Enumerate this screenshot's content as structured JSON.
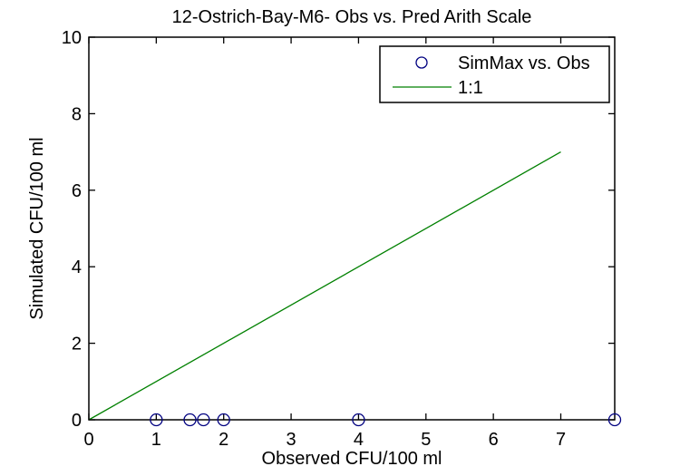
{
  "chart_data": {
    "type": "scatter",
    "title": "12-Ostrich-Bay-M6- Obs vs. Pred Arith Scale",
    "xlabel": "Observed CFU/100 ml",
    "ylabel": "Simulated CFU/100 ml",
    "xlim": [
      0,
      7.8
    ],
    "ylim": [
      0,
      10
    ],
    "x_ticks": [
      0,
      1,
      2,
      3,
      4,
      5,
      6,
      7
    ],
    "y_ticks": [
      0,
      2,
      4,
      6,
      8,
      10
    ],
    "grid": false,
    "legend_position": "top-right",
    "series": [
      {
        "name": "SimMax vs. Obs",
        "type": "scatter",
        "marker": "circle",
        "color": "#000080",
        "x": [
          1.0,
          1.5,
          1.7,
          2.0,
          4.0,
          7.8
        ],
        "y": [
          0,
          0,
          0,
          0,
          0,
          0
        ]
      },
      {
        "name": "1:1",
        "type": "line",
        "color": "#008000",
        "x": [
          0,
          7
        ],
        "y": [
          0,
          7
        ]
      }
    ],
    "colors": {
      "background": "#ffffff",
      "axis": "#000000",
      "text": "#000000"
    }
  }
}
